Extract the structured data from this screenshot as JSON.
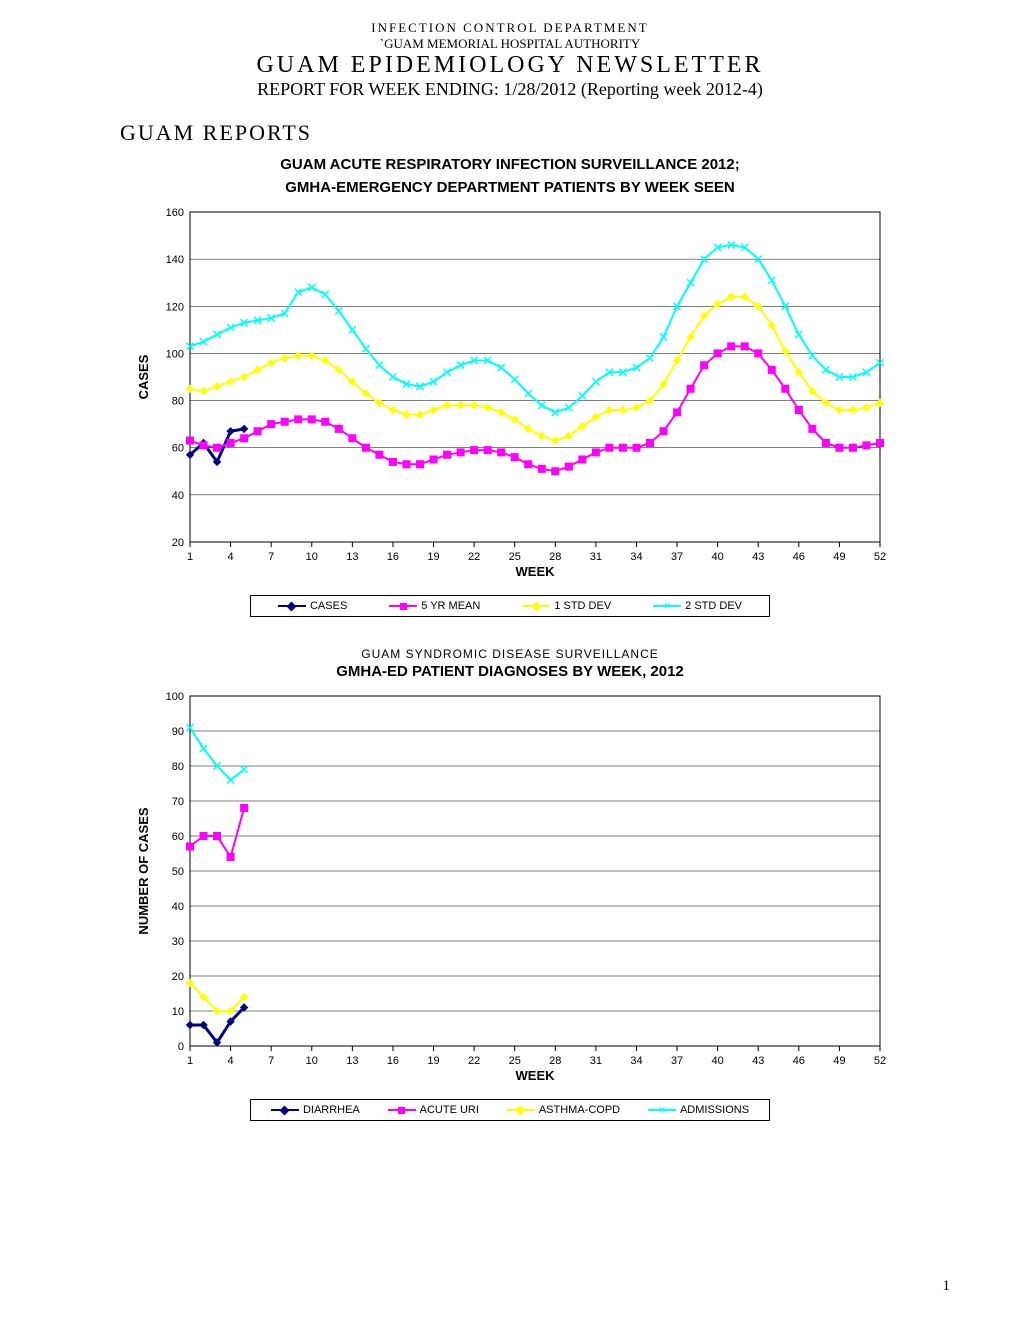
{
  "header": {
    "department": "INFECTION   CONTROL  DEPARTMENT",
    "hospital": "`GUAM MEMORIAL HOSPITAL AUTHORITY",
    "title": "GUAM   EPIDEMIOLOGY   NEWSLETTER",
    "subtitle": "REPORT FOR WEEK ENDING: 1/28/2012 (Reporting week 2012-4)"
  },
  "section_title": "GUAM REPORTS",
  "page_number": "1",
  "chart1": {
    "title_line1": "GUAM ACUTE RESPIRATORY INFECTION SURVEILLANCE 2012;",
    "title_line2": "GMHA-EMERGENCY DEPARTMENT PATIENTS BY WEEK SEEN",
    "type": "line",
    "x_label": "WEEK",
    "y_label": "CASES",
    "x_ticks": [
      1,
      4,
      7,
      10,
      13,
      16,
      19,
      22,
      25,
      28,
      31,
      34,
      37,
      40,
      43,
      46,
      49,
      52
    ],
    "y_ticks": [
      20,
      40,
      60,
      80,
      100,
      120,
      140,
      160
    ],
    "ylim": [
      20,
      160
    ],
    "xlim": [
      1,
      52
    ],
    "background_color": "#ffffff",
    "grid_color": "#000000",
    "axis_fontsize": 11,
    "label_fontsize": 13,
    "series": {
      "cases": {
        "label": "CASES",
        "color": "#000080",
        "marker": "diamond",
        "line_width": 3,
        "x": [
          1,
          2,
          3,
          4,
          5
        ],
        "y": [
          57,
          62,
          54,
          67,
          68
        ]
      },
      "mean5yr": {
        "label": "5 YR MEAN",
        "color": "#ff00ff",
        "marker": "square",
        "line_width": 2,
        "x": [
          1,
          2,
          3,
          4,
          5,
          6,
          7,
          8,
          9,
          10,
          11,
          12,
          13,
          14,
          15,
          16,
          17,
          18,
          19,
          20,
          21,
          22,
          23,
          24,
          25,
          26,
          27,
          28,
          29,
          30,
          31,
          32,
          33,
          34,
          35,
          36,
          37,
          38,
          39,
          40,
          41,
          42,
          43,
          44,
          45,
          46,
          47,
          48,
          49,
          50,
          51,
          52
        ],
        "y": [
          63,
          61,
          60,
          62,
          64,
          67,
          70,
          71,
          72,
          72,
          71,
          68,
          64,
          60,
          57,
          54,
          53,
          53,
          55,
          57,
          58,
          59,
          59,
          58,
          56,
          53,
          51,
          50,
          52,
          55,
          58,
          60,
          60,
          60,
          62,
          67,
          75,
          85,
          95,
          100,
          103,
          103,
          100,
          93,
          85,
          76,
          68,
          62,
          60,
          60,
          61,
          62
        ]
      },
      "std1": {
        "label": "1 STD DEV",
        "color": "#ffff00",
        "marker": "diamond",
        "line_width": 2,
        "x": [
          1,
          2,
          3,
          4,
          5,
          6,
          7,
          8,
          9,
          10,
          11,
          12,
          13,
          14,
          15,
          16,
          17,
          18,
          19,
          20,
          21,
          22,
          23,
          24,
          25,
          26,
          27,
          28,
          29,
          30,
          31,
          32,
          33,
          34,
          35,
          36,
          37,
          38,
          39,
          40,
          41,
          42,
          43,
          44,
          45,
          46,
          47,
          48,
          49,
          50,
          51,
          52
        ],
        "y": [
          85,
          84,
          86,
          88,
          90,
          93,
          96,
          98,
          99,
          99,
          97,
          93,
          88,
          83,
          79,
          76,
          74,
          74,
          76,
          78,
          78,
          78,
          77,
          75,
          72,
          68,
          65,
          63,
          65,
          69,
          73,
          76,
          76,
          77,
          80,
          87,
          97,
          107,
          116,
          121,
          124,
          124,
          120,
          112,
          101,
          92,
          84,
          79,
          76,
          76,
          77,
          79
        ]
      },
      "std2": {
        "label": "2 STD DEV",
        "color": "#00ffff",
        "marker": "x",
        "line_width": 2,
        "x": [
          1,
          2,
          3,
          4,
          5,
          6,
          7,
          8,
          9,
          10,
          11,
          12,
          13,
          14,
          15,
          16,
          17,
          18,
          19,
          20,
          21,
          22,
          23,
          24,
          25,
          26,
          27,
          28,
          29,
          30,
          31,
          32,
          33,
          34,
          35,
          36,
          37,
          38,
          39,
          40,
          41,
          42,
          43,
          44,
          45,
          46,
          47,
          48,
          49,
          50,
          51,
          52
        ],
        "y": [
          103,
          105,
          108,
          111,
          113,
          114,
          115,
          117,
          126,
          128,
          125,
          118,
          110,
          102,
          95,
          90,
          87,
          86,
          88,
          92,
          95,
          97,
          97,
          94,
          89,
          83,
          78,
          75,
          77,
          82,
          88,
          92,
          92,
          94,
          98,
          107,
          120,
          130,
          140,
          145,
          146,
          145,
          140,
          131,
          120,
          108,
          99,
          93,
          90,
          90,
          92,
          96
        ]
      }
    },
    "legend_items": [
      "cases",
      "mean5yr",
      "std1",
      "std2"
    ]
  },
  "chart2": {
    "supertitle": "GUAM  SYNDROMIC  DISEASE  SURVEILLANCE",
    "title": "GMHA-ED PATIENT DIAGNOSES BY WEEK, 2012",
    "type": "line",
    "x_label": "WEEK",
    "y_label": "NUMBER OF CASES",
    "x_ticks": [
      1,
      4,
      7,
      10,
      13,
      16,
      19,
      22,
      25,
      28,
      31,
      34,
      37,
      40,
      43,
      46,
      49,
      52
    ],
    "y_ticks": [
      0,
      10,
      20,
      30,
      40,
      50,
      60,
      70,
      80,
      90,
      100
    ],
    "ylim": [
      0,
      100
    ],
    "xlim": [
      1,
      52
    ],
    "background_color": "#ffffff",
    "grid_color": "#000000",
    "axis_fontsize": 11,
    "label_fontsize": 13,
    "series": {
      "diarrhea": {
        "label": "DIARRHEA",
        "color": "#000080",
        "marker": "diamond",
        "line_width": 3,
        "x": [
          1,
          2,
          3,
          4,
          5
        ],
        "y": [
          6,
          6,
          1,
          7,
          11
        ]
      },
      "acute_uri": {
        "label": "ACUTE URI",
        "color": "#ff00ff",
        "marker": "square",
        "line_width": 2,
        "x": [
          1,
          2,
          3,
          4,
          5
        ],
        "y": [
          57,
          60,
          60,
          54,
          68
        ]
      },
      "asthma": {
        "label": "ASTHMA-COPD",
        "color": "#ffff00",
        "marker": "diamond",
        "line_width": 2,
        "x": [
          1,
          2,
          3,
          4,
          5
        ],
        "y": [
          18,
          14,
          10,
          10,
          14
        ]
      },
      "admissions": {
        "label": "ADMISSIONS",
        "color": "#00ffff",
        "marker": "x",
        "line_width": 2,
        "x": [
          1,
          2,
          3,
          4,
          5
        ],
        "y": [
          91,
          85,
          80,
          76,
          79
        ]
      }
    },
    "legend_items": [
      "diarrhea",
      "acute_uri",
      "asthma",
      "admissions"
    ]
  }
}
